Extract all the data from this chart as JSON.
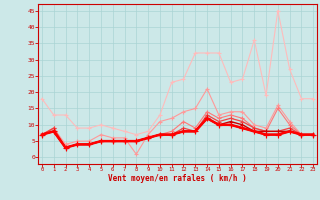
{
  "xlabel": "Vent moyen/en rafales ( km/h )",
  "bg_color": "#cce8e8",
  "grid_color": "#aad4d4",
  "x_ticks": [
    0,
    1,
    2,
    3,
    4,
    5,
    6,
    7,
    8,
    9,
    10,
    11,
    12,
    13,
    14,
    15,
    16,
    17,
    18,
    19,
    20,
    21,
    22,
    23
  ],
  "y_ticks": [
    0,
    5,
    10,
    15,
    20,
    25,
    30,
    35,
    40,
    45
  ],
  "ylim": [
    -2,
    47
  ],
  "xlim": [
    -0.3,
    23.3
  ],
  "series": [
    {
      "color": "#ffbbbb",
      "linewidth": 0.8,
      "marker": "+",
      "markersize": 3.0,
      "y": [
        18,
        13,
        13,
        9,
        9,
        10,
        9,
        8,
        7,
        8,
        13,
        23,
        24,
        32,
        32,
        32,
        23,
        24,
        36,
        19,
        45,
        27,
        18,
        18
      ]
    },
    {
      "color": "#ff9999",
      "linewidth": 0.8,
      "marker": "+",
      "markersize": 3.0,
      "y": [
        7,
        9,
        4,
        5,
        5,
        7,
        6,
        6,
        1,
        7,
        11,
        12,
        14,
        15,
        21,
        13,
        14,
        14,
        10,
        9,
        16,
        11,
        7,
        7
      ]
    },
    {
      "color": "#ff7777",
      "linewidth": 0.8,
      "marker": "+",
      "markersize": 3.0,
      "y": [
        7,
        9,
        3,
        4,
        4,
        5,
        5,
        5,
        5,
        6,
        7,
        8,
        11,
        9,
        14,
        12,
        13,
        12,
        9,
        8,
        15,
        10,
        7,
        7
      ]
    },
    {
      "color": "#ee4444",
      "linewidth": 0.9,
      "marker": "+",
      "markersize": 3.0,
      "y": [
        7,
        9,
        3,
        4,
        4,
        5,
        5,
        5,
        5,
        6,
        7,
        7,
        9,
        8,
        13,
        11,
        12,
        11,
        9,
        8,
        8,
        9,
        7,
        7
      ]
    },
    {
      "color": "#cc0000",
      "linewidth": 1.0,
      "marker": "+",
      "markersize": 3.5,
      "y": [
        7,
        8,
        3,
        4,
        4,
        5,
        5,
        5,
        5,
        6,
        7,
        7,
        8,
        8,
        12,
        10,
        11,
        10,
        8,
        8,
        8,
        8,
        7,
        7
      ]
    },
    {
      "color": "#aa0000",
      "linewidth": 1.2,
      "marker": "+",
      "markersize": 3.5,
      "y": [
        7,
        8,
        3,
        4,
        4,
        5,
        5,
        5,
        5,
        6,
        7,
        7,
        8,
        8,
        12,
        10,
        10,
        9,
        8,
        7,
        7,
        8,
        7,
        7
      ]
    },
    {
      "color": "#ff0000",
      "linewidth": 1.8,
      "marker": "+",
      "markersize": 4.0,
      "y": [
        7,
        8,
        3,
        4,
        4,
        5,
        5,
        5,
        5,
        6,
        7,
        7,
        8,
        8,
        12,
        10,
        10,
        9,
        8,
        7,
        7,
        8,
        7,
        7
      ]
    }
  ]
}
